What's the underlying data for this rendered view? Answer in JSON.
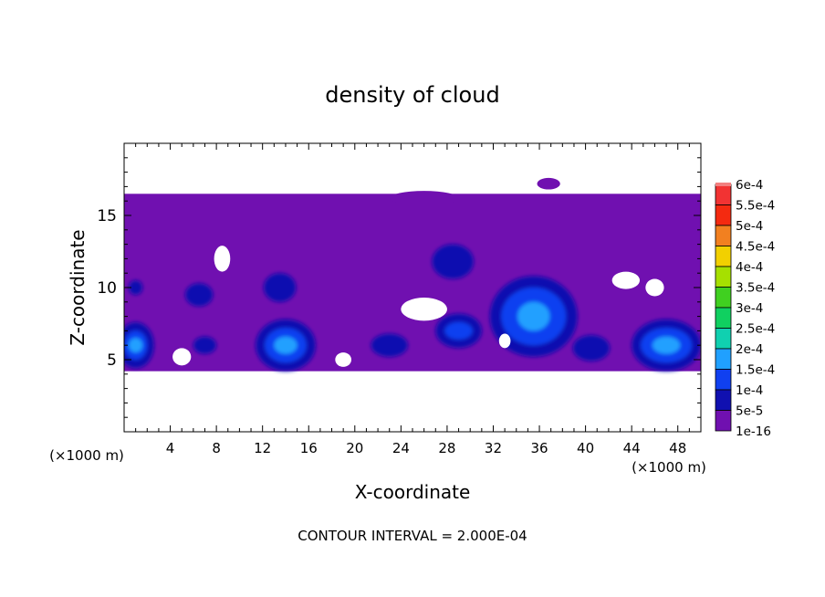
{
  "chart_data": {
    "type": "heatmap",
    "title": "density of cloud",
    "xlabel": "X-coordinate",
    "ylabel": "Z-coordinate",
    "x_unit_left": "(×1000 m)",
    "x_unit_right": "(×1000 m)",
    "xlim": [
      0,
      50
    ],
    "ylim": [
      0,
      20
    ],
    "x_ticks": [
      4,
      8,
      12,
      16,
      20,
      24,
      28,
      32,
      36,
      40,
      44,
      48
    ],
    "y_ticks": [
      5,
      10,
      15
    ],
    "footer": "CONTOUR INTERVAL = 2.000E-04",
    "colorbar": {
      "levels": [
        {
          "label": "6e-4",
          "color": "#f28080"
        },
        {
          "label": "5.5e-4",
          "color": "#f23333"
        },
        {
          "label": "5e-4",
          "color": "#f42a10"
        },
        {
          "label": "4.5e-4",
          "color": "#f28020"
        },
        {
          "label": "4e-4",
          "color": "#f2d000"
        },
        {
          "label": "3.5e-4",
          "color": "#a6e000"
        },
        {
          "label": "3e-4",
          "color": "#40d020"
        },
        {
          "label": "2.5e-4",
          "color": "#10d060"
        },
        {
          "label": "2e-4",
          "color": "#10d0b0"
        },
        {
          "label": "1.5e-4",
          "color": "#20a0ff"
        },
        {
          "label": "1e-4",
          "color": "#1040f0"
        },
        {
          "label": "5e-5",
          "color": "#1010b0"
        },
        {
          "label": "1e-16",
          "color": "#7010b0"
        }
      ]
    },
    "cloud_layer": {
      "z_bottom": 4.2,
      "z_top": 16.5,
      "color": "#7010b0"
    },
    "dense_regions": [
      {
        "x": 1.0,
        "z": 6.0,
        "rx": 1.6,
        "rz": 1.6,
        "level": "5e-5"
      },
      {
        "x": 1.0,
        "z": 6.0,
        "rx": 1.0,
        "rz": 1.0,
        "level": "1e-4"
      },
      {
        "x": 1.0,
        "z": 6.0,
        "rx": 0.6,
        "rz": 0.5,
        "level": "1.5e-4"
      },
      {
        "x": 14.0,
        "z": 6.0,
        "rx": 2.6,
        "rz": 1.8,
        "level": "5e-5"
      },
      {
        "x": 14.0,
        "z": 6.0,
        "rx": 1.8,
        "rz": 1.2,
        "level": "1e-4"
      },
      {
        "x": 14.0,
        "z": 6.0,
        "rx": 1.0,
        "rz": 0.6,
        "level": "1.5e-4"
      },
      {
        "x": 35.5,
        "z": 8.0,
        "rx": 3.8,
        "rz": 2.8,
        "level": "5e-5"
      },
      {
        "x": 35.5,
        "z": 8.0,
        "rx": 2.8,
        "rz": 2.0,
        "level": "1e-4"
      },
      {
        "x": 35.5,
        "z": 8.0,
        "rx": 1.4,
        "rz": 1.0,
        "level": "1.5e-4"
      },
      {
        "x": 47.0,
        "z": 6.0,
        "rx": 3.0,
        "rz": 1.8,
        "level": "5e-5"
      },
      {
        "x": 47.0,
        "z": 6.0,
        "rx": 2.2,
        "rz": 1.2,
        "level": "1e-4"
      },
      {
        "x": 47.0,
        "z": 6.0,
        "rx": 1.2,
        "rz": 0.6,
        "level": "1.5e-4"
      },
      {
        "x": 29.0,
        "z": 7.0,
        "rx": 2.0,
        "rz": 1.2,
        "level": "5e-5"
      },
      {
        "x": 29.0,
        "z": 7.0,
        "rx": 1.2,
        "rz": 0.6,
        "level": "1e-4"
      },
      {
        "x": 23.0,
        "z": 6.0,
        "rx": 1.6,
        "rz": 0.8,
        "level": "5e-5"
      },
      {
        "x": 40.5,
        "z": 5.8,
        "rx": 1.6,
        "rz": 0.9,
        "level": "5e-5"
      },
      {
        "x": 13.5,
        "z": 10.0,
        "rx": 1.4,
        "rz": 1.0,
        "level": "5e-5"
      },
      {
        "x": 28.5,
        "z": 11.8,
        "rx": 1.8,
        "rz": 1.2,
        "level": "5e-5"
      },
      {
        "x": 6.5,
        "z": 9.5,
        "rx": 1.2,
        "rz": 0.8,
        "level": "5e-5"
      },
      {
        "x": 7.0,
        "z": 6.0,
        "rx": 1.0,
        "rz": 0.6,
        "level": "5e-5"
      },
      {
        "x": 1.0,
        "z": 10.0,
        "rx": 0.6,
        "rz": 0.5,
        "level": "5e-5"
      }
    ],
    "clear_regions": [
      {
        "x": 8.5,
        "z": 12.0,
        "rx": 0.7,
        "rz": 0.9
      },
      {
        "x": 26.0,
        "z": 8.5,
        "rx": 2.0,
        "rz": 0.8
      },
      {
        "x": 33.0,
        "z": 6.3,
        "rx": 0.5,
        "rz": 0.5
      },
      {
        "x": 43.5,
        "z": 10.5,
        "rx": 1.2,
        "rz": 0.6
      },
      {
        "x": 46.0,
        "z": 10.0,
        "rx": 0.8,
        "rz": 0.6
      },
      {
        "x": 5.0,
        "z": 5.2,
        "rx": 0.8,
        "rz": 0.6
      },
      {
        "x": 19.0,
        "z": 5.0,
        "rx": 0.7,
        "rz": 0.5
      }
    ],
    "detached_patches": [
      {
        "x": 26.0,
        "z": 16.2,
        "rx": 3.0,
        "rz": 0.5
      },
      {
        "x": 36.8,
        "z": 17.2,
        "rx": 1.0,
        "rz": 0.4
      }
    ]
  }
}
